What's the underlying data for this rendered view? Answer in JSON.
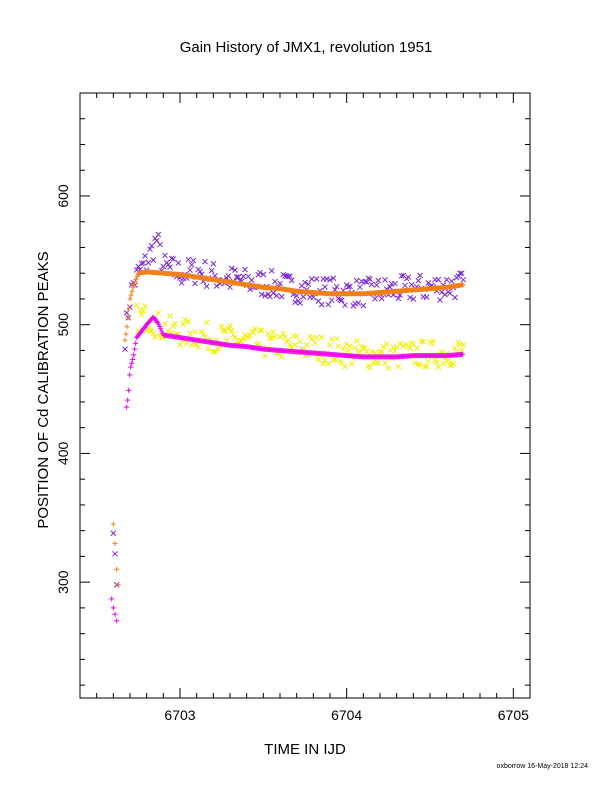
{
  "chart_data": {
    "type": "scatter",
    "title": "Gain History of JMX1, revolution 1951",
    "xlabel": "TIME IN IJD",
    "ylabel": "POSITION OF Cd CALIBRATION PEAKS",
    "xlim": [
      6702.4,
      6705.1
    ],
    "ylim": [
      210,
      680
    ],
    "x_ticks": [
      6703,
      6704,
      6705
    ],
    "y_ticks": [
      300,
      400,
      500,
      600
    ],
    "grid": false,
    "footer": "oxborrow 16-May-2018 12:24",
    "series": [
      {
        "color": "#7a28d8",
        "marker": "x",
        "points": [
          [
            6702.6,
            338
          ],
          [
            6702.61,
            322
          ],
          [
            6702.62,
            298
          ],
          [
            6702.67,
            492
          ],
          [
            6702.68,
            500
          ],
          [
            6702.7,
            520
          ],
          [
            6702.72,
            532
          ],
          [
            6702.76,
            542
          ],
          [
            6702.8,
            548
          ],
          [
            6702.84,
            560
          ],
          [
            6702.86,
            566
          ],
          [
            6702.9,
            545
          ],
          [
            6703.0,
            540
          ],
          [
            6703.1,
            542
          ],
          [
            6703.2,
            538
          ],
          [
            6703.3,
            535
          ],
          [
            6703.4,
            533
          ],
          [
            6703.5,
            532
          ],
          [
            6703.6,
            530
          ],
          [
            6703.7,
            528
          ],
          [
            6703.8,
            527
          ],
          [
            6703.9,
            526
          ],
          [
            6704.0,
            525
          ],
          [
            6704.1,
            525
          ],
          [
            6704.2,
            526
          ],
          [
            6704.3,
            527
          ],
          [
            6704.4,
            528
          ],
          [
            6704.5,
            529
          ],
          [
            6704.6,
            530
          ],
          [
            6704.7,
            531
          ]
        ],
        "scatter": 11
      },
      {
        "color": "#f08018",
        "marker": "+",
        "points": [
          [
            6702.6,
            345
          ],
          [
            6702.61,
            330
          ],
          [
            6702.62,
            310
          ],
          [
            6702.63,
            298
          ],
          [
            6702.67,
            488
          ],
          [
            6702.68,
            496
          ],
          [
            6702.7,
            520
          ],
          [
            6702.72,
            530
          ],
          [
            6702.75,
            540
          ],
          [
            6702.8,
            541
          ],
          [
            6702.9,
            540
          ],
          [
            6703.0,
            539
          ],
          [
            6703.1,
            537
          ],
          [
            6703.2,
            535
          ],
          [
            6703.3,
            533
          ],
          [
            6703.4,
            531
          ],
          [
            6703.5,
            529
          ],
          [
            6703.6,
            528
          ],
          [
            6703.7,
            526
          ],
          [
            6703.8,
            525
          ],
          [
            6703.9,
            524
          ],
          [
            6704.0,
            524
          ],
          [
            6704.1,
            524
          ],
          [
            6704.2,
            525
          ],
          [
            6704.3,
            526
          ],
          [
            6704.4,
            527
          ],
          [
            6704.5,
            528
          ],
          [
            6704.6,
            529
          ],
          [
            6704.7,
            531
          ]
        ],
        "scatter": 0
      },
      {
        "color": "#f0f000",
        "marker": "x",
        "points": [
          [
            6702.74,
            505
          ],
          [
            6702.78,
            506
          ],
          [
            6702.82,
            505
          ],
          [
            6702.86,
            500
          ],
          [
            6702.9,
            497
          ],
          [
            6703.0,
            494
          ],
          [
            6703.1,
            492
          ],
          [
            6703.2,
            490
          ],
          [
            6703.3,
            489
          ],
          [
            6703.4,
            487
          ],
          [
            6703.5,
            485
          ],
          [
            6703.6,
            484
          ],
          [
            6703.7,
            483
          ],
          [
            6703.8,
            482
          ],
          [
            6703.9,
            480
          ],
          [
            6704.0,
            478
          ],
          [
            6704.1,
            477
          ],
          [
            6704.2,
            476
          ],
          [
            6704.3,
            476
          ],
          [
            6704.4,
            477
          ],
          [
            6704.5,
            477
          ],
          [
            6704.6,
            478
          ],
          [
            6704.7,
            480
          ]
        ],
        "scatter": 11
      },
      {
        "color": "#f000f0",
        "marker": "+",
        "points": [
          [
            6702.59,
            287
          ],
          [
            6702.6,
            280
          ],
          [
            6702.61,
            275
          ],
          [
            6702.62,
            270
          ],
          [
            6702.68,
            436
          ],
          [
            6702.69,
            445
          ],
          [
            6702.7,
            465
          ],
          [
            6702.72,
            475
          ],
          [
            6702.74,
            490
          ],
          [
            6702.77,
            495
          ],
          [
            6702.8,
            500
          ],
          [
            6702.84,
            506
          ],
          [
            6702.87,
            501
          ],
          [
            6702.9,
            492
          ],
          [
            6703.0,
            490
          ],
          [
            6703.1,
            488
          ],
          [
            6703.2,
            486
          ],
          [
            6703.3,
            484
          ],
          [
            6703.4,
            483
          ],
          [
            6703.5,
            481
          ],
          [
            6703.6,
            480
          ],
          [
            6703.7,
            479
          ],
          [
            6703.8,
            478
          ],
          [
            6703.9,
            477
          ],
          [
            6704.0,
            476
          ],
          [
            6704.1,
            475
          ],
          [
            6704.2,
            475
          ],
          [
            6704.3,
            475
          ],
          [
            6704.4,
            476
          ],
          [
            6704.5,
            476
          ],
          [
            6704.6,
            476
          ],
          [
            6704.7,
            477
          ]
        ],
        "scatter": 0
      }
    ]
  }
}
